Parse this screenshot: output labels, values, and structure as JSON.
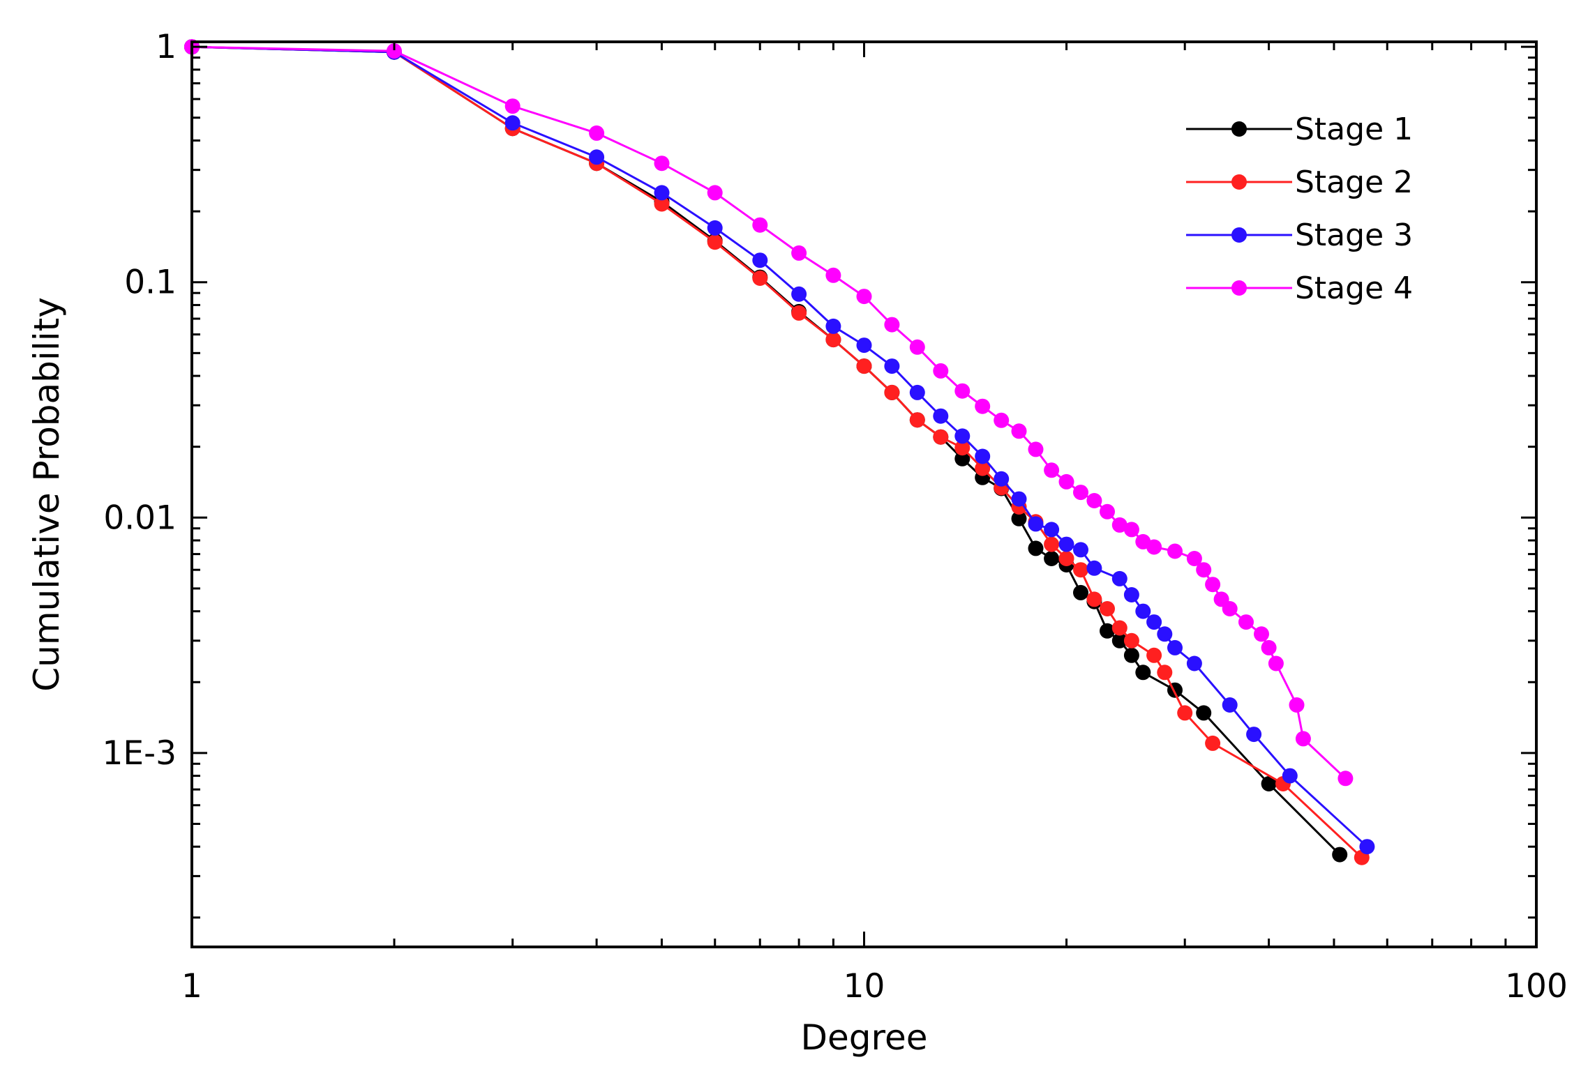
{
  "chart_data": {
    "type": "line",
    "title": "",
    "xlabel": "Degree",
    "ylabel": "Cumulative Probability",
    "xscale": "log",
    "yscale": "log",
    "xlim": [
      1,
      100
    ],
    "ylim": [
      0.00015,
      1.05
    ],
    "x_ticks": [
      1,
      10,
      100
    ],
    "x_tick_labels": [
      "1",
      "10",
      "100"
    ],
    "y_ticks": [
      1,
      0.1,
      0.01,
      0.001
    ],
    "y_tick_labels": [
      "1",
      "0.1",
      "0.01",
      "1E-3"
    ],
    "grid": false,
    "legend_position": "top-right",
    "series": [
      {
        "name": "Stage 1",
        "color": "#000000",
        "points": [
          [
            1,
            1.0
          ],
          [
            2,
            0.95
          ],
          [
            3,
            0.45
          ],
          [
            4,
            0.32
          ],
          [
            5,
            0.22
          ],
          [
            6,
            0.15
          ],
          [
            7,
            0.105
          ],
          [
            8,
            0.075
          ],
          [
            9,
            0.057
          ],
          [
            10,
            0.044
          ],
          [
            11,
            0.034
          ],
          [
            12,
            0.026
          ],
          [
            13,
            0.022
          ],
          [
            14,
            0.0178
          ],
          [
            15,
            0.0148
          ],
          [
            16,
            0.0133
          ],
          [
            17,
            0.0099
          ],
          [
            18,
            0.0074
          ],
          [
            19,
            0.0067
          ],
          [
            20,
            0.0063
          ],
          [
            21,
            0.0048
          ],
          [
            22,
            0.0044
          ],
          [
            23,
            0.0033
          ],
          [
            24,
            0.003
          ],
          [
            25,
            0.0026
          ],
          [
            26,
            0.0022
          ],
          [
            29,
            0.00185
          ],
          [
            32,
            0.00148
          ],
          [
            40,
            0.00074
          ],
          [
            51,
            0.00037
          ]
        ]
      },
      {
        "name": "Stage 2",
        "color": "#ff2020",
        "points": [
          [
            1,
            1.0
          ],
          [
            2,
            0.95
          ],
          [
            3,
            0.45
          ],
          [
            4,
            0.32
          ],
          [
            5,
            0.215
          ],
          [
            6,
            0.148
          ],
          [
            7,
            0.104
          ],
          [
            8,
            0.074
          ],
          [
            9,
            0.057
          ],
          [
            10,
            0.044
          ],
          [
            11,
            0.034
          ],
          [
            12,
            0.026
          ],
          [
            13,
            0.022
          ],
          [
            14,
            0.0198
          ],
          [
            15,
            0.0162
          ],
          [
            16,
            0.0134
          ],
          [
            17,
            0.0111
          ],
          [
            18,
            0.0096
          ],
          [
            19,
            0.0077
          ],
          [
            20,
            0.0067
          ],
          [
            21,
            0.006
          ],
          [
            22,
            0.0045
          ],
          [
            23,
            0.0041
          ],
          [
            24,
            0.0034
          ],
          [
            25,
            0.003
          ],
          [
            27,
            0.0026
          ],
          [
            28,
            0.0022
          ],
          [
            30,
            0.00148
          ],
          [
            33,
            0.0011
          ],
          [
            42,
            0.00074
          ],
          [
            55,
            0.00036
          ]
        ]
      },
      {
        "name": "Stage 3",
        "color": "#2a10ff",
        "points": [
          [
            1,
            1.0
          ],
          [
            2,
            0.95
          ],
          [
            3,
            0.475
          ],
          [
            4,
            0.34
          ],
          [
            5,
            0.24
          ],
          [
            6,
            0.17
          ],
          [
            7,
            0.124
          ],
          [
            8,
            0.089
          ],
          [
            9,
            0.065
          ],
          [
            10,
            0.054
          ],
          [
            11,
            0.044
          ],
          [
            12,
            0.034
          ],
          [
            13,
            0.027
          ],
          [
            14,
            0.0222
          ],
          [
            15,
            0.0182
          ],
          [
            16,
            0.0146
          ],
          [
            17,
            0.012
          ],
          [
            18,
            0.0094
          ],
          [
            19,
            0.0089
          ],
          [
            20,
            0.0077
          ],
          [
            21,
            0.0073
          ],
          [
            22,
            0.0061
          ],
          [
            24,
            0.0055
          ],
          [
            25,
            0.0047
          ],
          [
            26,
            0.004
          ],
          [
            27,
            0.0036
          ],
          [
            28,
            0.0032
          ],
          [
            29,
            0.0028
          ],
          [
            31,
            0.0024
          ],
          [
            35,
            0.0016
          ],
          [
            38,
            0.0012
          ],
          [
            43,
            0.0008
          ],
          [
            56,
            0.0004
          ]
        ]
      },
      {
        "name": "Stage 4",
        "color": "#ff00ff",
        "points": [
          [
            1,
            1.0
          ],
          [
            2,
            0.96
          ],
          [
            3,
            0.56
          ],
          [
            4,
            0.43
          ],
          [
            5,
            0.32
          ],
          [
            6,
            0.24
          ],
          [
            7,
            0.175
          ],
          [
            8,
            0.133
          ],
          [
            9,
            0.107
          ],
          [
            10,
            0.087
          ],
          [
            11,
            0.066
          ],
          [
            12,
            0.053
          ],
          [
            13,
            0.042
          ],
          [
            14,
            0.0345
          ],
          [
            15,
            0.0297
          ],
          [
            16,
            0.0259
          ],
          [
            17,
            0.0233
          ],
          [
            18,
            0.0195
          ],
          [
            19,
            0.0159
          ],
          [
            20,
            0.0142
          ],
          [
            21,
            0.0128
          ],
          [
            22,
            0.0118
          ],
          [
            23,
            0.0106
          ],
          [
            24,
            0.0093
          ],
          [
            25,
            0.0089
          ],
          [
            26,
            0.0079
          ],
          [
            27,
            0.0075
          ],
          [
            29,
            0.0072
          ],
          [
            31,
            0.0067
          ],
          [
            32,
            0.006
          ],
          [
            33,
            0.0052
          ],
          [
            34,
            0.0045
          ],
          [
            35,
            0.0041
          ],
          [
            37,
            0.0036
          ],
          [
            39,
            0.0032
          ],
          [
            40,
            0.0028
          ],
          [
            41,
            0.0024
          ],
          [
            44,
            0.0016
          ],
          [
            45,
            0.00115
          ],
          [
            52,
            0.00078
          ]
        ]
      }
    ]
  }
}
